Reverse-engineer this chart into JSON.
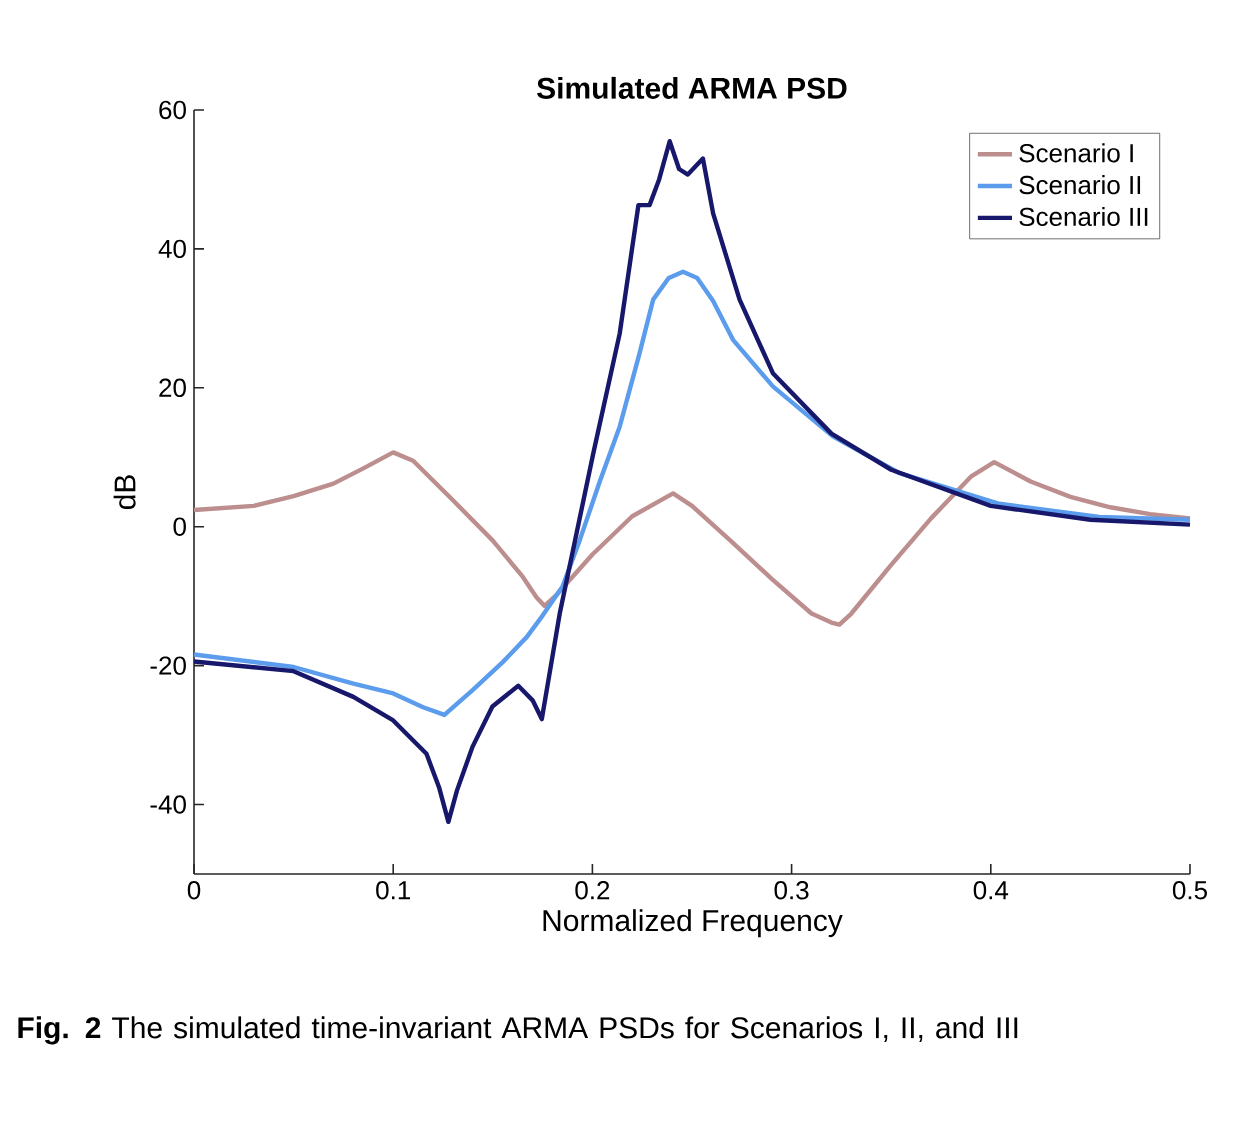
{
  "chart_data": {
    "type": "line",
    "title": "Simulated ARMA PSD",
    "xlabel": "Normalized Frequency",
    "ylabel": "dB",
    "xlim": [
      0,
      0.5
    ],
    "ylim": [
      -50,
      60
    ],
    "xticks": [
      0,
      0.1,
      0.2,
      0.3,
      0.4,
      0.5
    ],
    "yticks": [
      -40,
      -20,
      0,
      20,
      40,
      60
    ],
    "grid": false,
    "legend": "top right",
    "marker": "none",
    "line_style": "solid",
    "series": [
      {
        "name": "Scenario I",
        "color": "#bc8e8e",
        "x": [
          0,
          0.03,
          0.05,
          0.07,
          0.085,
          0.1,
          0.11,
          0.13,
          0.15,
          0.165,
          0.172,
          0.176,
          0.182,
          0.2,
          0.22,
          0.2405,
          0.25,
          0.27,
          0.29,
          0.31,
          0.32,
          0.324,
          0.33,
          0.35,
          0.37,
          0.39,
          0.4017,
          0.42,
          0.44,
          0.46,
          0.48,
          0.5
        ],
        "values": [
          2.4,
          3.0,
          4.4,
          6.2,
          8.4,
          10.7,
          9.5,
          3.8,
          -2,
          -7.2,
          -10.2,
          -11.4,
          -9.8,
          -4,
          1.5,
          4.8,
          3,
          -2.2,
          -7.5,
          -12.5,
          -13.8,
          -14.1,
          -12.5,
          -5.5,
          1.2,
          7.2,
          9.3,
          6.5,
          4.3,
          2.8,
          1.8,
          1.2
        ]
      },
      {
        "name": "Scenario II",
        "color": "#5b9cec",
        "x": [
          0,
          0.05,
          0.08,
          0.1,
          0.115,
          0.1257,
          0.14,
          0.155,
          0.167,
          0.175,
          0.185,
          0.1937,
          0.2037,
          0.2137,
          0.2237,
          0.2305,
          0.2383,
          0.2455,
          0.2526,
          0.2606,
          0.2706,
          0.2906,
          0.3207,
          0.3542,
          0.4043,
          0.4545,
          0.5
        ],
        "values": [
          -18.4,
          -20.2,
          -22.6,
          -24,
          -26,
          -27.1,
          -23.5,
          -19.5,
          -15.9,
          -12.8,
          -8.6,
          -1.9,
          6.5,
          14.4,
          25,
          32.7,
          35.8,
          36.7,
          35.8,
          32.5,
          26.9,
          20.2,
          13,
          7.7,
          3.3,
          1.4,
          1.0
        ]
      },
      {
        "name": "Scenario III",
        "color": "#17176b",
        "x": [
          0,
          0.05,
          0.08,
          0.1,
          0.1167,
          0.123,
          0.1277,
          0.132,
          0.1398,
          0.1498,
          0.1628,
          0.17,
          0.1746,
          0.1836,
          0.2004,
          0.2137,
          0.2231,
          0.2287,
          0.2335,
          0.2388,
          0.2435,
          0.2479,
          0.2555,
          0.2606,
          0.2739,
          0.2906,
          0.32,
          0.35,
          0.4,
          0.45,
          0.5
        ],
        "values": [
          -19.4,
          -20.8,
          -24.5,
          -27.9,
          -32.7,
          -37.5,
          -42.5,
          -38,
          -31.7,
          -25.9,
          -22.9,
          -25,
          -27.7,
          -12.5,
          10.5,
          27.8,
          46.3,
          46.3,
          50,
          55.5,
          51.5,
          50.7,
          53,
          45.1,
          32.7,
          22.1,
          13.4,
          8.2,
          3.0,
          1.0,
          0.3
        ]
      }
    ],
    "annotations": [
      "**Fig. 2** The simulated time-invariant ARMA PSDs for Scenarios I, II, and III"
    ]
  }
}
